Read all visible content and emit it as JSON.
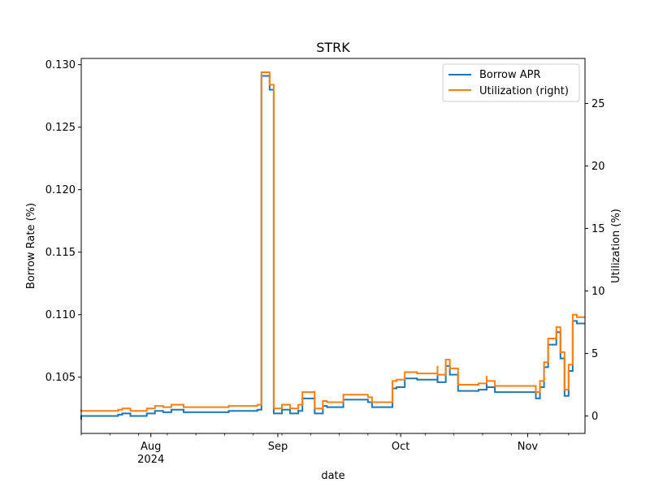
{
  "chart_data": {
    "type": "line",
    "title": "STRK",
    "xlabel": "date",
    "ylabel": "Borrow Rate (%)",
    "ylabel_right": "Utilization (%)",
    "x_range": [
      "2024-07-15",
      "2024-11-15"
    ],
    "ylim": [
      0.1005,
      0.1305
    ],
    "ylim_right": [
      -1.4,
      28.6
    ],
    "y_ticks": [
      "0.105",
      "0.110",
      "0.115",
      "0.120",
      "0.125",
      "0.130"
    ],
    "y_tick_values": [
      0.105,
      0.11,
      0.115,
      0.12,
      0.125,
      0.13
    ],
    "y_ticks_right": [
      "0",
      "5",
      "10",
      "15",
      "20",
      "25"
    ],
    "y_tick_values_right": [
      0,
      5,
      10,
      15,
      20,
      25
    ],
    "x_major_ticks": [
      {
        "date": "2024-08-01",
        "label": "Aug",
        "sublabel": "2024"
      },
      {
        "date": "2024-09-01",
        "label": "Sep",
        "sublabel": ""
      },
      {
        "date": "2024-10-01",
        "label": "Oct",
        "sublabel": ""
      },
      {
        "date": "2024-11-01",
        "label": "Nov",
        "sublabel": ""
      }
    ],
    "x_minor_ticks": [
      "2024-07-15",
      "2024-07-22",
      "2024-07-29",
      "2024-08-05",
      "2024-08-12",
      "2024-08-19",
      "2024-08-26",
      "2024-09-02",
      "2024-09-09",
      "2024-09-16",
      "2024-09-23",
      "2024-09-30",
      "2024-10-07",
      "2024-10-14",
      "2024-10-21",
      "2024-10-28",
      "2024-11-04",
      "2024-11-11"
    ],
    "legend_position": "top-right",
    "grid": false,
    "series": [
      {
        "name": "Borrow APR",
        "axis": "left",
        "color": "#1f77b4",
        "x": [
          "2024-07-15",
          "2024-07-15",
          "2024-07-24",
          "2024-07-25",
          "2024-07-27",
          "2024-07-31",
          "2024-08-02",
          "2024-08-04",
          "2024-08-06",
          "2024-08-09",
          "2024-08-11",
          "2024-08-18",
          "2024-08-20",
          "2024-08-27",
          "2024-08-28",
          "2024-08-28",
          "2024-08-30",
          "2024-08-30",
          "2024-08-31",
          "2024-09-02",
          "2024-09-04",
          "2024-09-06",
          "2024-09-06",
          "2024-09-07",
          "2024-09-10",
          "2024-09-10",
          "2024-09-12",
          "2024-09-13",
          "2024-09-17",
          "2024-09-17",
          "2024-09-23",
          "2024-09-24",
          "2024-09-24",
          "2024-09-29",
          "2024-09-30",
          "2024-10-02",
          "2024-10-05",
          "2024-10-10",
          "2024-10-10",
          "2024-10-12",
          "2024-10-13",
          "2024-10-15",
          "2024-10-20",
          "2024-10-22",
          "2024-10-22",
          "2024-10-24",
          "2024-10-28",
          "2024-11-03",
          "2024-11-04",
          "2024-11-05",
          "2024-11-06",
          "2024-11-08",
          "2024-11-09",
          "2024-11-10",
          "2024-11-11",
          "2024-11-12",
          "2024-11-13",
          "2024-11-15"
        ],
        "y": [
          0.1016,
          0.1019,
          0.102,
          0.1021,
          0.1019,
          0.1021,
          0.1023,
          0.1022,
          0.1024,
          0.1022,
          0.1022,
          0.1022,
          0.1023,
          0.1024,
          0.129,
          0.1291,
          0.1288,
          0.128,
          0.1021,
          0.1024,
          0.1021,
          0.1024,
          0.1023,
          0.1033,
          0.1034,
          0.1021,
          0.1027,
          0.1026,
          0.1028,
          0.1032,
          0.103,
          0.1029,
          0.1026,
          0.1041,
          0.1042,
          0.1049,
          0.1048,
          0.1053,
          0.1046,
          0.1059,
          0.1052,
          0.1039,
          0.104,
          0.1047,
          0.1042,
          0.1038,
          0.1038,
          0.1033,
          0.1042,
          0.1058,
          0.1076,
          0.1086,
          0.1065,
          0.1035,
          0.1055,
          0.1095,
          0.1093,
          0.1093
        ]
      },
      {
        "name": "Utilization (right)",
        "axis": "right",
        "color": "#ff7f0e",
        "x": [
          "2024-07-15",
          "2024-07-15",
          "2024-07-24",
          "2024-07-25",
          "2024-07-27",
          "2024-07-31",
          "2024-08-02",
          "2024-08-04",
          "2024-08-06",
          "2024-08-09",
          "2024-08-11",
          "2024-08-18",
          "2024-08-20",
          "2024-08-27",
          "2024-08-28",
          "2024-08-28",
          "2024-08-30",
          "2024-08-30",
          "2024-08-31",
          "2024-09-02",
          "2024-09-04",
          "2024-09-06",
          "2024-09-07",
          "2024-09-10",
          "2024-09-10",
          "2024-09-12",
          "2024-09-13",
          "2024-09-17",
          "2024-09-17",
          "2024-09-23",
          "2024-09-24",
          "2024-09-24",
          "2024-09-29",
          "2024-09-30",
          "2024-10-02",
          "2024-10-05",
          "2024-10-10",
          "2024-10-10",
          "2024-10-12",
          "2024-10-13",
          "2024-10-15",
          "2024-10-20",
          "2024-10-22",
          "2024-10-22",
          "2024-10-24",
          "2024-10-28",
          "2024-11-03",
          "2024-11-04",
          "2024-11-05",
          "2024-11-06",
          "2024-11-08",
          "2024-11-09",
          "2024-11-10",
          "2024-11-11",
          "2024-11-12",
          "2024-11-13",
          "2024-11-15"
        ],
        "y": [
          0.5,
          0.4,
          0.5,
          0.6,
          0.4,
          0.6,
          0.8,
          0.7,
          0.9,
          0.7,
          0.7,
          0.7,
          0.8,
          0.9,
          27.4,
          27.5,
          27.2,
          26.5,
          0.6,
          0.9,
          0.6,
          0.9,
          1.9,
          2.0,
          0.6,
          1.2,
          1.1,
          1.3,
          1.7,
          1.5,
          1.4,
          1.1,
          2.8,
          2.9,
          3.5,
          3.4,
          4.0,
          3.3,
          4.5,
          3.8,
          2.5,
          2.6,
          3.2,
          2.8,
          2.4,
          2.4,
          1.9,
          2.8,
          4.3,
          6.2,
          7.1,
          5.1,
          2.1,
          4.1,
          8.1,
          7.9,
          7.9
        ]
      }
    ]
  }
}
